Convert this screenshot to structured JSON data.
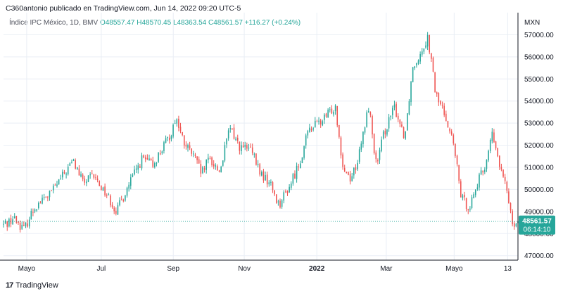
{
  "header": {
    "publisher": "C360antonio publicado en TradingView.com, Jun 14, 2022 09:20 UTC-5"
  },
  "legend": {
    "symbol": "Índice IPC México, 1D, BMV",
    "open": "O48557.47",
    "high": "H48570.45",
    "low": "L48363.54",
    "close": "C48561.57",
    "change": "+116.27 (+0.24%)"
  },
  "footer": {
    "logo_text": "17",
    "brand": "TradingView"
  },
  "colors": {
    "up": "#26a69a",
    "down": "#ef5350",
    "grid": "#e9eef5",
    "last": "#26a69a"
  },
  "chart_data": {
    "type": "candlestick",
    "currency": "MXN",
    "ylim": [
      46800,
      58000
    ],
    "yticks": [
      47000,
      48000,
      49000,
      50000,
      51000,
      52000,
      53000,
      54000,
      55000,
      56000,
      57000
    ],
    "ytick_labels": [
      "47000.00",
      "48000.00",
      "49000.00",
      "50000.00",
      "51000.00",
      "52000.00",
      "53000.00",
      "54000.00",
      "55000.00",
      "56000.00",
      "57000.00"
    ],
    "xticks": [
      {
        "label": "Mayo",
        "pos": 0.045,
        "bold": false
      },
      {
        "label": "Jul",
        "pos": 0.19,
        "bold": false
      },
      {
        "label": "Sep",
        "pos": 0.33,
        "bold": false
      },
      {
        "label": "Nov",
        "pos": 0.468,
        "bold": false
      },
      {
        "label": "2022",
        "pos": 0.609,
        "bold": true
      },
      {
        "label": "Mar",
        "pos": 0.744,
        "bold": false
      },
      {
        "label": "Mayo",
        "pos": 0.876,
        "bold": false
      },
      {
        "label": "13",
        "pos": 0.98,
        "bold": false
      }
    ],
    "anchors": [
      [
        0.0,
        48400
      ],
      [
        0.02,
        48700
      ],
      [
        0.04,
        48200
      ],
      [
        0.06,
        49200
      ],
      [
        0.09,
        49800
      ],
      [
        0.115,
        50600
      ],
      [
        0.135,
        51300
      ],
      [
        0.155,
        50300
      ],
      [
        0.175,
        50600
      ],
      [
        0.2,
        49800
      ],
      [
        0.22,
        49000
      ],
      [
        0.245,
        50300
      ],
      [
        0.27,
        51400
      ],
      [
        0.29,
        51100
      ],
      [
        0.31,
        51900
      ],
      [
        0.325,
        52500
      ],
      [
        0.335,
        53300
      ],
      [
        0.35,
        52100
      ],
      [
        0.37,
        51500
      ],
      [
        0.385,
        50700
      ],
      [
        0.4,
        51400
      ],
      [
        0.42,
        50800
      ],
      [
        0.44,
        52800
      ],
      [
        0.46,
        51900
      ],
      [
        0.48,
        51800
      ],
      [
        0.5,
        50700
      ],
      [
        0.52,
        50200
      ],
      [
        0.535,
        49300
      ],
      [
        0.555,
        50100
      ],
      [
        0.575,
        51200
      ],
      [
        0.595,
        52800
      ],
      [
        0.62,
        53100
      ],
      [
        0.645,
        53800
      ],
      [
        0.66,
        51000
      ],
      [
        0.675,
        50500
      ],
      [
        0.69,
        51400
      ],
      [
        0.71,
        53800
      ],
      [
        0.725,
        51000
      ],
      [
        0.74,
        52600
      ],
      [
        0.76,
        53700
      ],
      [
        0.78,
        52400
      ],
      [
        0.795,
        55500
      ],
      [
        0.81,
        56200
      ],
      [
        0.825,
        56900
      ],
      [
        0.84,
        54300
      ],
      [
        0.86,
        53300
      ],
      [
        0.875,
        52000
      ],
      [
        0.89,
        49600
      ],
      [
        0.905,
        49200
      ],
      [
        0.92,
        50200
      ],
      [
        0.935,
        51000
      ],
      [
        0.95,
        52500
      ],
      [
        0.965,
        51000
      ],
      [
        0.98,
        49800
      ],
      [
        0.99,
        48500
      ],
      [
        1.0,
        48560
      ]
    ],
    "last_price": 48561.57,
    "last_price_label": "48561.57",
    "countdown_label": "06:14:10"
  }
}
